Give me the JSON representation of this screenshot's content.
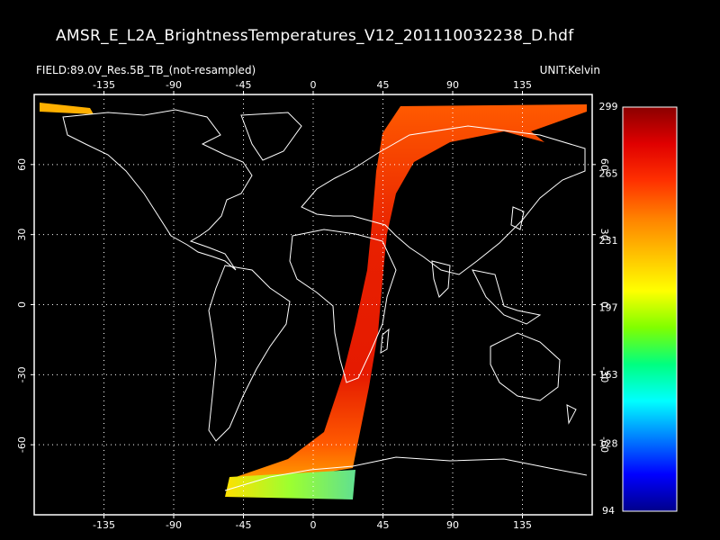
{
  "title": "AMSR_E_L2A_BrightnessTemperatures_V12_201110032238_D.hdf",
  "field_label": "FIELD:89.0V_Res.5B_TB_(not-resampled)",
  "unit_label": "UNIT:Kelvin",
  "map": {
    "lon_ticks": [
      "-135",
      "-90",
      "-45",
      "0",
      "45",
      "90",
      "135"
    ],
    "lat_ticks": [
      "-60",
      "-30",
      "0",
      "30",
      "60"
    ],
    "lon_values": [
      -135,
      -90,
      -45,
      0,
      45,
      90,
      135
    ],
    "lat_values": [
      -60,
      -30,
      0,
      30,
      60
    ]
  },
  "colorbar": {
    "labels": [
      "299",
      "265",
      "231",
      "197",
      "163",
      "128",
      "94"
    ],
    "min": 94,
    "max": 299,
    "colors": [
      "#00008b",
      "#0000ff",
      "#0080ff",
      "#00ffff",
      "#00ff80",
      "#80ff00",
      "#ffff00",
      "#ffc000",
      "#ff8000",
      "#ff3000",
      "#e00000",
      "#8b0000"
    ]
  }
}
